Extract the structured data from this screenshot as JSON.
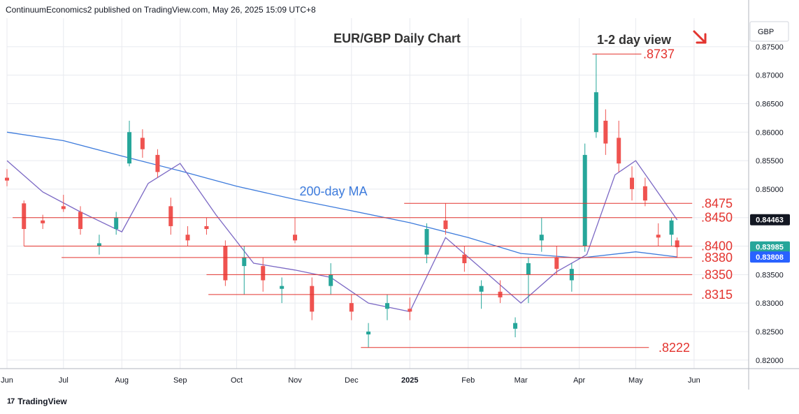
{
  "header": {
    "text": "ContinuumEconomics2 published on TradingView.com, May 26, 2025 15:09 UTC+8"
  },
  "footer": {
    "brand": "TradingView",
    "logo": "tradingview-logo"
  },
  "colors": {
    "up": "#26a69a",
    "down": "#ef5350",
    "level": "#e3342f",
    "ma200": "#3d7bdc",
    "ma20": "#7b68c4",
    "grid": "#e8eaef",
    "tag_price": "#131722",
    "tag_ma": "#2962ff"
  },
  "chart_data": {
    "type": "candlestick",
    "title": "EUR/GBP Daily Chart",
    "view": "1-2 day view",
    "view_icon": "arrow-down-right-icon",
    "currency": "GBP",
    "ylim": [
      0.8185,
      0.88
    ],
    "xlim": [
      "2024-06-01",
      "2025-06-30"
    ],
    "y_ticks": [
      "0.87500",
      "0.87000",
      "0.86500",
      "0.86000",
      "0.85500",
      "0.85000",
      "0.84500",
      "0.84000",
      "0.83500",
      "0.83000",
      "0.82500",
      "0.82000"
    ],
    "x_ticks": [
      {
        "label": "Jun",
        "date": "2024-06-01"
      },
      {
        "label": "Jul",
        "date": "2024-07-01"
      },
      {
        "label": "Aug",
        "date": "2024-08-01"
      },
      {
        "label": "Sep",
        "date": "2024-09-01"
      },
      {
        "label": "Oct",
        "date": "2024-10-01"
      },
      {
        "label": "Nov",
        "date": "2024-11-01"
      },
      {
        "label": "Dec",
        "date": "2024-12-01"
      },
      {
        "label": "2025",
        "date": "2025-01-01"
      },
      {
        "label": "Feb",
        "date": "2025-02-01"
      },
      {
        "label": "Mar",
        "date": "2025-03-01"
      },
      {
        "label": "Apr",
        "date": "2025-04-01"
      },
      {
        "label": "May",
        "date": "2025-05-01"
      },
      {
        "label": "Jun",
        "date": "2025-06-01"
      }
    ],
    "levels": [
      {
        "label": ".8737",
        "value": 0.8737,
        "from": "2025-04-08",
        "to": "2025-05-04"
      },
      {
        "label": ".8475",
        "value": 0.8475,
        "from": "2024-12-29",
        "to": "2025-05-31"
      },
      {
        "label": ".8450",
        "value": 0.845,
        "from": "2024-06-04",
        "to": "2025-05-31"
      },
      {
        "label": ".8400",
        "value": 0.84,
        "from": "2024-06-10",
        "to": "2025-05-31"
      },
      {
        "label": ".8380",
        "value": 0.838,
        "from": "2024-06-30",
        "to": "2025-05-31"
      },
      {
        "label": ".8350",
        "value": 0.835,
        "from": "2024-09-15",
        "to": "2025-05-31"
      },
      {
        "label": ".8315",
        "value": 0.8315,
        "from": "2024-09-16",
        "to": "2025-05-31"
      },
      {
        "label": ".8222",
        "value": 0.8222,
        "from": "2024-12-06",
        "to": "2025-05-08"
      }
    ],
    "ma_label": "200-day MA",
    "price_tags": [
      {
        "label": "0.84463",
        "value": 0.84463,
        "color": "#131722"
      },
      {
        "label": "0.83985",
        "value": 0.83985,
        "color": "#26a69a"
      },
      {
        "label": "0.83808",
        "value": 0.83808,
        "color": "#2962ff"
      }
    ],
    "ma200": {
      "name": "200-day MA",
      "dates": [
        "2024-06-01",
        "2024-07-01",
        "2024-08-01",
        "2024-09-01",
        "2024-10-01",
        "2024-11-01",
        "2024-12-01",
        "2025-01-01",
        "2025-02-01",
        "2025-03-01",
        "2025-04-01",
        "2025-05-01",
        "2025-05-23"
      ],
      "values": [
        0.86,
        0.8585,
        0.8558,
        0.8532,
        0.8505,
        0.8482,
        0.8462,
        0.8441,
        0.8415,
        0.8387,
        0.8379,
        0.839,
        0.8381
      ]
    },
    "ma20": {
      "dates": [
        "2024-06-01",
        "2024-06-20",
        "2024-07-10",
        "2024-08-01",
        "2024-08-15",
        "2024-09-01",
        "2024-09-20",
        "2024-10-10",
        "2024-11-01",
        "2024-11-20",
        "2024-12-10",
        "2025-01-01",
        "2025-01-20",
        "2025-02-10",
        "2025-03-01",
        "2025-03-20",
        "2025-04-05",
        "2025-04-20",
        "2025-05-01",
        "2025-05-23"
      ],
      "values": [
        0.855,
        0.8495,
        0.846,
        0.8425,
        0.851,
        0.8545,
        0.8455,
        0.837,
        0.8358,
        0.8345,
        0.83,
        0.8285,
        0.8415,
        0.8355,
        0.83,
        0.8355,
        0.8385,
        0.8525,
        0.855,
        0.8446
      ]
    },
    "candles": [
      [
        "2024-06-01",
        0.852,
        0.8535,
        0.8505,
        0.8515
      ],
      [
        "2024-06-10",
        0.8475,
        0.848,
        0.84,
        0.843
      ],
      [
        "2024-06-20",
        0.8445,
        0.8455,
        0.843,
        0.844
      ],
      [
        "2024-07-01",
        0.847,
        0.849,
        0.846,
        0.8465
      ],
      [
        "2024-07-10",
        0.846,
        0.847,
        0.842,
        0.843
      ],
      [
        "2024-07-20",
        0.84,
        0.842,
        0.8385,
        0.8405
      ],
      [
        "2024-07-29",
        0.843,
        0.846,
        0.842,
        0.845
      ],
      [
        "2024-08-05",
        0.8545,
        0.862,
        0.854,
        0.86
      ],
      [
        "2024-08-12",
        0.859,
        0.8605,
        0.8555,
        0.857
      ],
      [
        "2024-08-20",
        0.856,
        0.857,
        0.852,
        0.853
      ],
      [
        "2024-08-27",
        0.847,
        0.8485,
        0.842,
        0.8435
      ],
      [
        "2024-09-05",
        0.842,
        0.8435,
        0.84,
        0.841
      ],
      [
        "2024-09-15",
        0.8435,
        0.845,
        0.842,
        0.843
      ],
      [
        "2024-09-25",
        0.84,
        0.841,
        0.833,
        0.834
      ],
      [
        "2024-10-05",
        0.8365,
        0.84,
        0.8315,
        0.838
      ],
      [
        "2024-10-15",
        0.8365,
        0.838,
        0.832,
        0.834
      ],
      [
        "2024-10-25",
        0.8325,
        0.8345,
        0.83,
        0.833
      ],
      [
        "2024-11-01",
        0.842,
        0.845,
        0.8405,
        0.841
      ],
      [
        "2024-11-10",
        0.833,
        0.8345,
        0.827,
        0.8285
      ],
      [
        "2024-11-20",
        0.833,
        0.837,
        0.8315,
        0.835
      ],
      [
        "2024-12-01",
        0.83,
        0.8315,
        0.827,
        0.8285
      ],
      [
        "2024-12-10",
        0.8245,
        0.8265,
        0.8222,
        0.825
      ],
      [
        "2024-12-20",
        0.829,
        0.8315,
        0.827,
        0.83
      ],
      [
        "2025-01-01",
        0.829,
        0.831,
        0.827,
        0.8285
      ],
      [
        "2025-01-10",
        0.8385,
        0.844,
        0.837,
        0.843
      ],
      [
        "2025-01-20",
        0.8445,
        0.8475,
        0.842,
        0.843
      ],
      [
        "2025-01-30",
        0.8385,
        0.84,
        0.8355,
        0.837
      ],
      [
        "2025-02-08",
        0.832,
        0.834,
        0.829,
        0.833
      ],
      [
        "2025-02-18",
        0.832,
        0.834,
        0.83,
        0.831
      ],
      [
        "2025-02-26",
        0.8255,
        0.8275,
        0.824,
        0.8265
      ],
      [
        "2025-03-05",
        0.835,
        0.838,
        0.83,
        0.837
      ],
      [
        "2025-03-12",
        0.841,
        0.845,
        0.839,
        0.842
      ],
      [
        "2025-03-20",
        0.838,
        0.84,
        0.835,
        0.836
      ],
      [
        "2025-03-28",
        0.834,
        0.837,
        0.832,
        0.836
      ],
      [
        "2025-04-04",
        0.84,
        0.858,
        0.839,
        0.856
      ],
      [
        "2025-04-10",
        0.86,
        0.8737,
        0.859,
        0.867
      ],
      [
        "2025-04-15",
        0.862,
        0.864,
        0.856,
        0.858
      ],
      [
        "2025-04-22",
        0.859,
        0.862,
        0.853,
        0.8545
      ],
      [
        "2025-04-29",
        0.852,
        0.854,
        0.848,
        0.85
      ],
      [
        "2025-05-06",
        0.8505,
        0.852,
        0.847,
        0.848
      ],
      [
        "2025-05-13",
        0.842,
        0.844,
        0.84,
        0.8415
      ],
      [
        "2025-05-20",
        0.842,
        0.845,
        0.84,
        0.8445
      ],
      [
        "2025-05-23",
        0.841,
        0.8415,
        0.838,
        0.8398
      ]
    ]
  }
}
